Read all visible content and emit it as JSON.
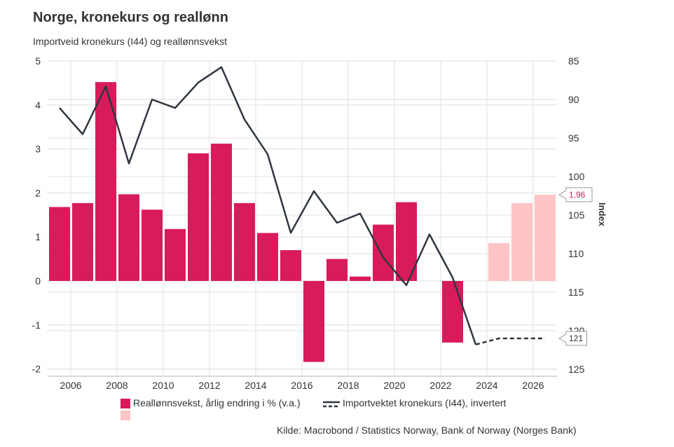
{
  "header": {
    "title": "Norge, kronekurs og reallønn",
    "subtitle": "Importveid kronekurs (I44) og reallønnsvekst"
  },
  "legend": {
    "bars_label": "Reallønnsvekst, årlig endring i % (v.a.)",
    "line_label": "Importvektet kronekurs (I44), invertert"
  },
  "source": "Kilde: Macrobond / Statistics Norway, Bank of Norway (Norges Bank)",
  "colors": {
    "bar_actual": "#d81b5a",
    "bar_forecast": "#ffc4c6",
    "line": "#2f3640",
    "grid": "#e0e0e0",
    "callout_bar_text": "#d81b5a",
    "callout_line_text": "#333333"
  },
  "chart_data": {
    "type": "bar+line",
    "title": "Norge, kronekurs og reallønn",
    "subtitle": "Importveid kronekurs (I44) og reallønnsvekst",
    "x_ticks": [
      "2006",
      "2008",
      "2010",
      "2012",
      "2014",
      "2016",
      "2018",
      "2020",
      "2022",
      "2024",
      "2026"
    ],
    "x_range": [
      2005,
      2027
    ],
    "left_axis": {
      "range": [
        -2.2,
        5.2
      ],
      "ticks": [
        "5",
        "4",
        "3",
        "2",
        "1",
        "0",
        "-1",
        "-2"
      ],
      "tick_values": [
        5,
        4,
        3,
        2,
        1,
        0,
        -1,
        -2
      ]
    },
    "right_axis": {
      "label": "Index",
      "inverted": true,
      "range": [
        84.5,
        125.5
      ],
      "ticks": [
        "85",
        "90",
        "95",
        "100",
        "105",
        "110",
        "115",
        "120",
        "125"
      ],
      "tick_values": [
        85,
        90,
        95,
        100,
        105,
        110,
        115,
        120,
        125
      ]
    },
    "bars": {
      "name": "Reallønnsvekst, årlig endring i % (v.a.)",
      "years": [
        2006,
        2007,
        2008,
        2009,
        2010,
        2011,
        2012,
        2013,
        2014,
        2015,
        2016,
        2017,
        2018,
        2019,
        2020,
        2021,
        2022,
        2023,
        2024,
        2025,
        2026,
        2027
      ],
      "values": [
        1.68,
        1.77,
        4.52,
        1.97,
        1.62,
        1.18,
        2.9,
        3.12,
        1.77,
        1.09,
        0.7,
        -1.84,
        0.5,
        0.1,
        1.28,
        1.79,
        null,
        -1.4,
        null,
        0.86,
        1.77,
        1.96
      ],
      "forecast_from": 2025
    },
    "line": {
      "name": "Importvektet kronekurs (I44), invertert",
      "x": [
        2006,
        2007,
        2008,
        2009,
        2010,
        2011,
        2012,
        2013,
        2014,
        2015,
        2016,
        2017,
        2018,
        2019,
        2020,
        2021,
        2022,
        2023,
        2024
      ],
      "values": [
        91.1,
        94.5,
        88.3,
        98.3,
        90.0,
        91.1,
        87.8,
        85.8,
        92.6,
        97.1,
        107.3,
        101.9,
        106.0,
        104.8,
        110.5,
        114.1,
        107.5,
        113.1,
        121.8
      ],
      "projection_x": [
        2024,
        2025,
        2026,
        2027
      ],
      "projection_values": [
        121.8,
        121.0,
        121.0,
        121.0
      ]
    },
    "callouts": {
      "bar_last": "1,96",
      "line_last": "121"
    }
  }
}
